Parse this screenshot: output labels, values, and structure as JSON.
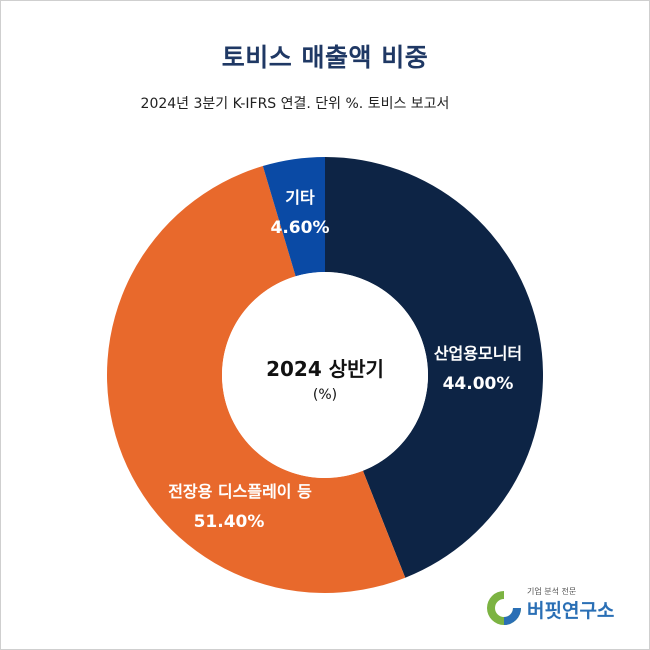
{
  "header": {
    "title": "토비스 매출액 비중",
    "subtitle": "2024년 3분기 K-IFRS 연결. 단위 %. 토비스 보고서"
  },
  "chart_data": {
    "type": "pie",
    "variant": "donut",
    "center_label": "2024 상반기",
    "center_sublabel": "(%)",
    "slices": [
      {
        "label": "산업용모니터",
        "value": 44.0,
        "display": "44.00%",
        "color": "#0d2445"
      },
      {
        "label": "전장용 디스플레이 등",
        "value": 51.4,
        "display": "51.40%",
        "color": "#e8692c"
      },
      {
        "label": "기타",
        "value": 4.6,
        "display": "4.60%",
        "color": "#0a4aa5"
      }
    ]
  },
  "logo": {
    "tagline": "기업 분석 전문",
    "name": "버핏연구소",
    "colors": {
      "green": "#7cb342",
      "blue": "#2a6fb5"
    }
  }
}
